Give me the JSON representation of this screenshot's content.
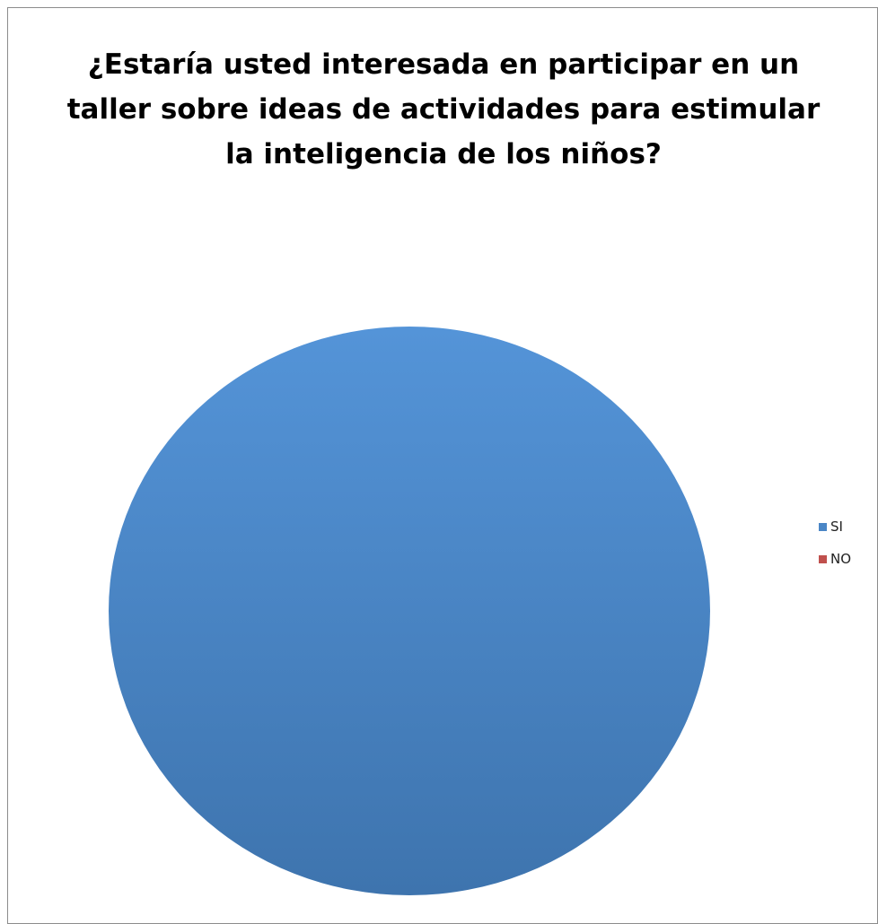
{
  "chart_data": {
    "type": "pie",
    "title": "¿Estaría usted interesada en participar en un taller sobre ideas de actividades para estimular la inteligencia de los niños?",
    "categories": [
      "SI",
      "NO"
    ],
    "values": [
      100,
      0
    ],
    "colors": [
      "#4a86c6",
      "#c0504d"
    ],
    "legend_position": "right"
  }
}
